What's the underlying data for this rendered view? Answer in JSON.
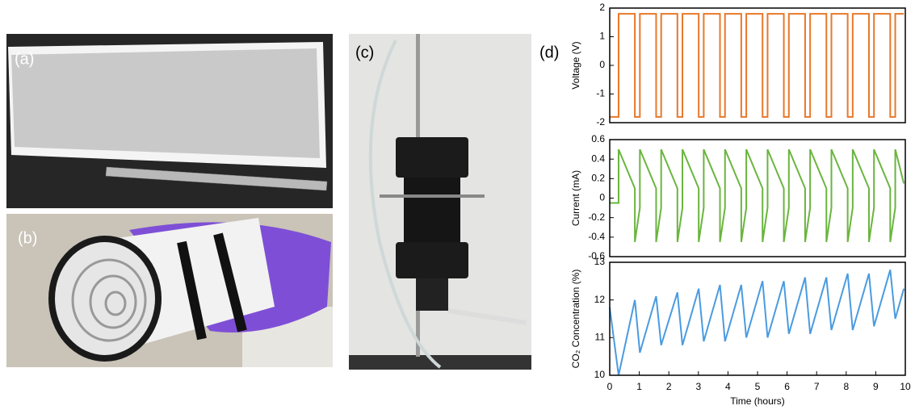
{
  "panels": [
    {
      "label": "(a)"
    },
    {
      "label": "(b)"
    },
    {
      "label": "(c)"
    },
    {
      "label": "(d)"
    }
  ],
  "chart_data": [
    {
      "type": "line",
      "ylabel": "Voltage (V)",
      "xlim": [
        0,
        10
      ],
      "ylim": [
        -2,
        2
      ],
      "yticks": [
        -2,
        -1,
        0,
        1,
        2
      ],
      "series": [
        {
          "color": "#e8782a",
          "x": [
            0,
            0.3,
            0.3,
            0.85,
            0.85,
            1.02,
            1.02,
            1.57,
            1.57,
            1.74,
            1.74,
            2.29,
            2.29,
            2.46,
            2.46,
            3.01,
            3.01,
            3.18,
            3.18,
            3.73,
            3.73,
            3.9,
            3.9,
            4.45,
            4.45,
            4.62,
            4.62,
            5.17,
            5.17,
            5.34,
            5.34,
            5.89,
            5.89,
            6.06,
            6.06,
            6.61,
            6.61,
            6.78,
            6.78,
            7.33,
            7.33,
            7.5,
            7.5,
            8.05,
            8.05,
            8.22,
            8.22,
            8.77,
            8.77,
            8.94,
            8.94,
            9.49,
            9.49,
            9.66,
            9.66,
            9.95
          ],
          "values": [
            -1.8,
            -1.8,
            1.8,
            1.8,
            -1.8,
            -1.8,
            1.8,
            1.8,
            -1.8,
            -1.8,
            1.8,
            1.8,
            -1.8,
            -1.8,
            1.8,
            1.8,
            -1.8,
            -1.8,
            1.8,
            1.8,
            -1.8,
            -1.8,
            1.8,
            1.8,
            -1.8,
            -1.8,
            1.8,
            1.8,
            -1.8,
            -1.8,
            1.8,
            1.8,
            -1.8,
            -1.8,
            1.8,
            1.8,
            -1.8,
            -1.8,
            1.8,
            1.8,
            -1.8,
            -1.8,
            1.8,
            1.8,
            -1.8,
            -1.8,
            1.8,
            1.8,
            -1.8,
            -1.8,
            1.8,
            1.8,
            -1.8,
            -1.8,
            1.8,
            1.8
          ]
        }
      ]
    },
    {
      "type": "line",
      "ylabel": "Current (mA)",
      "xlim": [
        0,
        10
      ],
      "ylim": [
        -0.6,
        0.6
      ],
      "yticks": [
        -0.6,
        -0.4,
        -0.2,
        0,
        0.2,
        0.4,
        0.6
      ],
      "series": [
        {
          "color": "#6ab53e",
          "x": [
            0,
            0.3,
            0.3,
            0.85,
            0.85,
            1.02,
            1.02,
            1.57,
            1.57,
            1.74,
            1.74,
            2.29,
            2.29,
            2.46,
            2.46,
            3.01,
            3.01,
            3.18,
            3.18,
            3.73,
            3.73,
            3.9,
            3.9,
            4.45,
            4.45,
            4.62,
            4.62,
            5.17,
            5.17,
            5.34,
            5.34,
            5.89,
            5.89,
            6.06,
            6.06,
            6.61,
            6.61,
            6.78,
            6.78,
            7.33,
            7.33,
            7.5,
            7.5,
            8.05,
            8.05,
            8.22,
            8.22,
            8.77,
            8.77,
            8.94,
            8.94,
            9.49,
            9.49,
            9.66,
            9.66,
            9.95
          ],
          "values": [
            -0.05,
            -0.05,
            0.5,
            0.1,
            -0.45,
            -0.1,
            0.5,
            0.1,
            -0.45,
            -0.1,
            0.5,
            0.1,
            -0.45,
            -0.1,
            0.5,
            0.1,
            -0.45,
            -0.1,
            0.5,
            0.1,
            -0.45,
            -0.1,
            0.5,
            0.1,
            -0.45,
            -0.1,
            0.5,
            0.1,
            -0.45,
            -0.1,
            0.5,
            0.1,
            -0.45,
            -0.1,
            0.5,
            0.1,
            -0.45,
            -0.1,
            0.5,
            0.1,
            -0.45,
            -0.1,
            0.5,
            0.1,
            -0.45,
            -0.1,
            0.5,
            0.1,
            -0.45,
            -0.1,
            0.5,
            0.1,
            -0.45,
            -0.1,
            0.5,
            0.15
          ]
        }
      ]
    },
    {
      "type": "line",
      "ylabel": "CO₂ Concentration (%)",
      "xlabel": "Time (hours)",
      "xlim": [
        0,
        10
      ],
      "xticks": [
        0,
        1,
        2,
        3,
        4,
        5,
        6,
        7,
        8,
        9,
        10
      ],
      "ylim": [
        10,
        13
      ],
      "yticks": [
        10,
        11,
        12,
        13
      ],
      "series": [
        {
          "color": "#4a9be0",
          "x": [
            0,
            0.3,
            0.85,
            1.02,
            1.57,
            1.74,
            2.29,
            2.46,
            3.01,
            3.18,
            3.73,
            3.9,
            4.45,
            4.62,
            5.17,
            5.34,
            5.89,
            6.06,
            6.61,
            6.78,
            7.33,
            7.5,
            8.05,
            8.22,
            8.77,
            8.94,
            9.49,
            9.66,
            9.95
          ],
          "values": [
            11.8,
            10.0,
            12.0,
            10.6,
            12.1,
            10.8,
            12.2,
            10.8,
            12.3,
            10.9,
            12.4,
            10.9,
            12.4,
            11.0,
            12.5,
            11.0,
            12.5,
            11.1,
            12.6,
            11.1,
            12.6,
            11.2,
            12.7,
            11.2,
            12.7,
            11.3,
            12.8,
            11.5,
            12.3
          ]
        }
      ]
    }
  ]
}
